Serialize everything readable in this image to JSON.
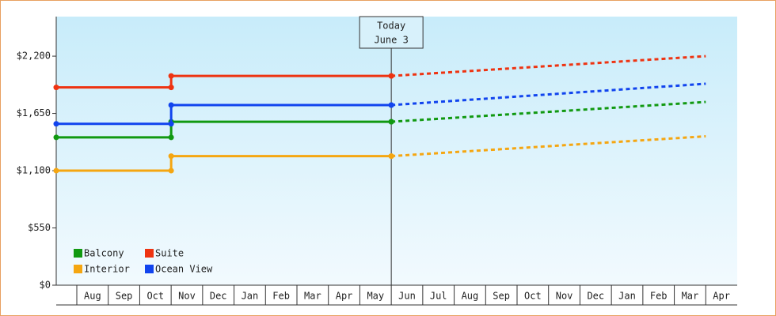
{
  "chart_data": {
    "type": "step-line",
    "categories": [
      null,
      "Aug",
      "Sep",
      "Oct",
      "Nov",
      "Dec",
      "Jan",
      "Feb",
      "Mar",
      "Apr",
      "May",
      "Jun",
      "Jul",
      "Aug",
      "Sep",
      "Oct",
      "Nov",
      "Dec",
      "Jan",
      "Feb",
      "Mar",
      "Apr"
    ],
    "series": [
      {
        "name": "Balcony",
        "color": "#119911",
        "values": [
          1420,
          null,
          null,
          null,
          1570,
          null,
          null,
          null,
          null,
          null,
          null,
          1570,
          null,
          null,
          null,
          null,
          null,
          null,
          null,
          null,
          null,
          1760
        ]
      },
      {
        "name": "Suite",
        "color": "#ee3311",
        "values": [
          1900,
          null,
          null,
          null,
          2010,
          null,
          null,
          null,
          null,
          null,
          null,
          2010,
          null,
          null,
          null,
          null,
          null,
          null,
          null,
          null,
          null,
          2200
        ]
      },
      {
        "name": "Interior",
        "color": "#f5a611",
        "values": [
          1100,
          null,
          null,
          null,
          1240,
          null,
          null,
          null,
          null,
          null,
          null,
          1240,
          null,
          null,
          null,
          null,
          null,
          null,
          null,
          null,
          null,
          1430
        ]
      },
      {
        "name": "Ocean View",
        "color": "#1144ee",
        "values": [
          1550,
          null,
          null,
          null,
          1730,
          null,
          null,
          null,
          null,
          null,
          null,
          1730,
          null,
          null,
          null,
          null,
          null,
          null,
          null,
          null,
          null,
          1935
        ]
      }
    ],
    "annotation": {
      "x": "Jun",
      "text": [
        "Today",
        "June 3"
      ]
    },
    "ylim": [
      0,
      2580
    ],
    "yticks": [
      {
        "value": 0,
        "label": "$0"
      },
      {
        "value": 550,
        "label": "$550"
      },
      {
        "value": 1100,
        "label": "$1,100"
      },
      {
        "value": 1650,
        "label": "$1,650"
      },
      {
        "value": 2200,
        "label": "$2,200"
      }
    ],
    "legend": "lower-left"
  }
}
